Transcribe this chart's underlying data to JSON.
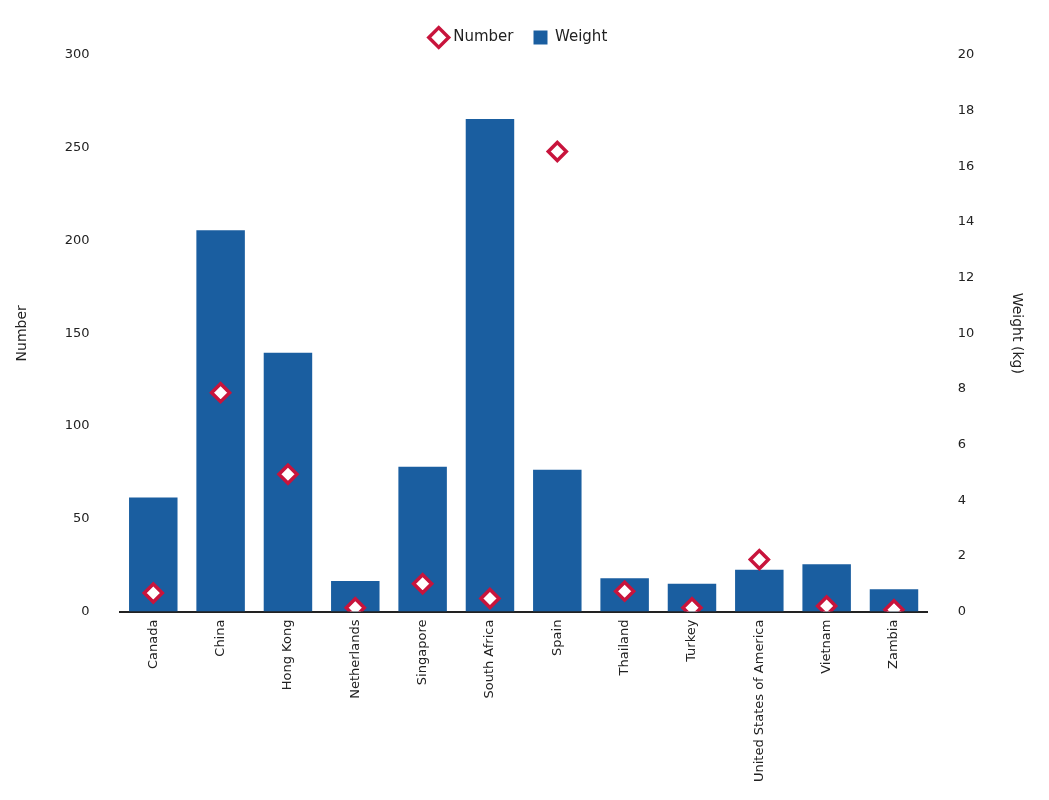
{
  "chart_data": {
    "type": "bar",
    "categories": [
      "Canada",
      "China",
      "Hong Kong",
      "Netherlands",
      "Singapore",
      "South Africa",
      "Spain",
      "Thailand",
      "Turkey",
      "United States of America",
      "Vietnam",
      "Zambia"
    ],
    "ylabel": "Number",
    "y2label": "Weight (kg)",
    "ylim": [
      0,
      300
    ],
    "yticks": [
      0,
      50,
      100,
      150,
      200,
      250,
      300
    ],
    "y2lim": [
      0,
      20
    ],
    "y2ticks": [
      0,
      2,
      4,
      6,
      8,
      10,
      12,
      14,
      16,
      18,
      20
    ],
    "grid": false,
    "legend": "top",
    "marker": "diamond",
    "series": [
      {
        "name": "Number",
        "type": "scatter",
        "color": "#c8143c",
        "x": [
          "Canada",
          "China",
          "Hong Kong",
          "Netherlands",
          "Singapore",
          "South Africa",
          "Spain",
          "Thailand",
          "Turkey",
          "United States of America",
          "Vietnam",
          "Zambia"
        ],
        "values": [
          10,
          118,
          74,
          2,
          15,
          7,
          248,
          11,
          2,
          28,
          3,
          1
        ]
      },
      {
        "name": "Weight",
        "axis": "y2",
        "color": "#1a5ea0",
        "values": [
          4.1,
          13.7,
          9.3,
          1.1,
          5.2,
          17.7,
          5.1,
          1.2,
          1.0,
          1.5,
          1.7,
          0.8
        ]
      }
    ]
  }
}
